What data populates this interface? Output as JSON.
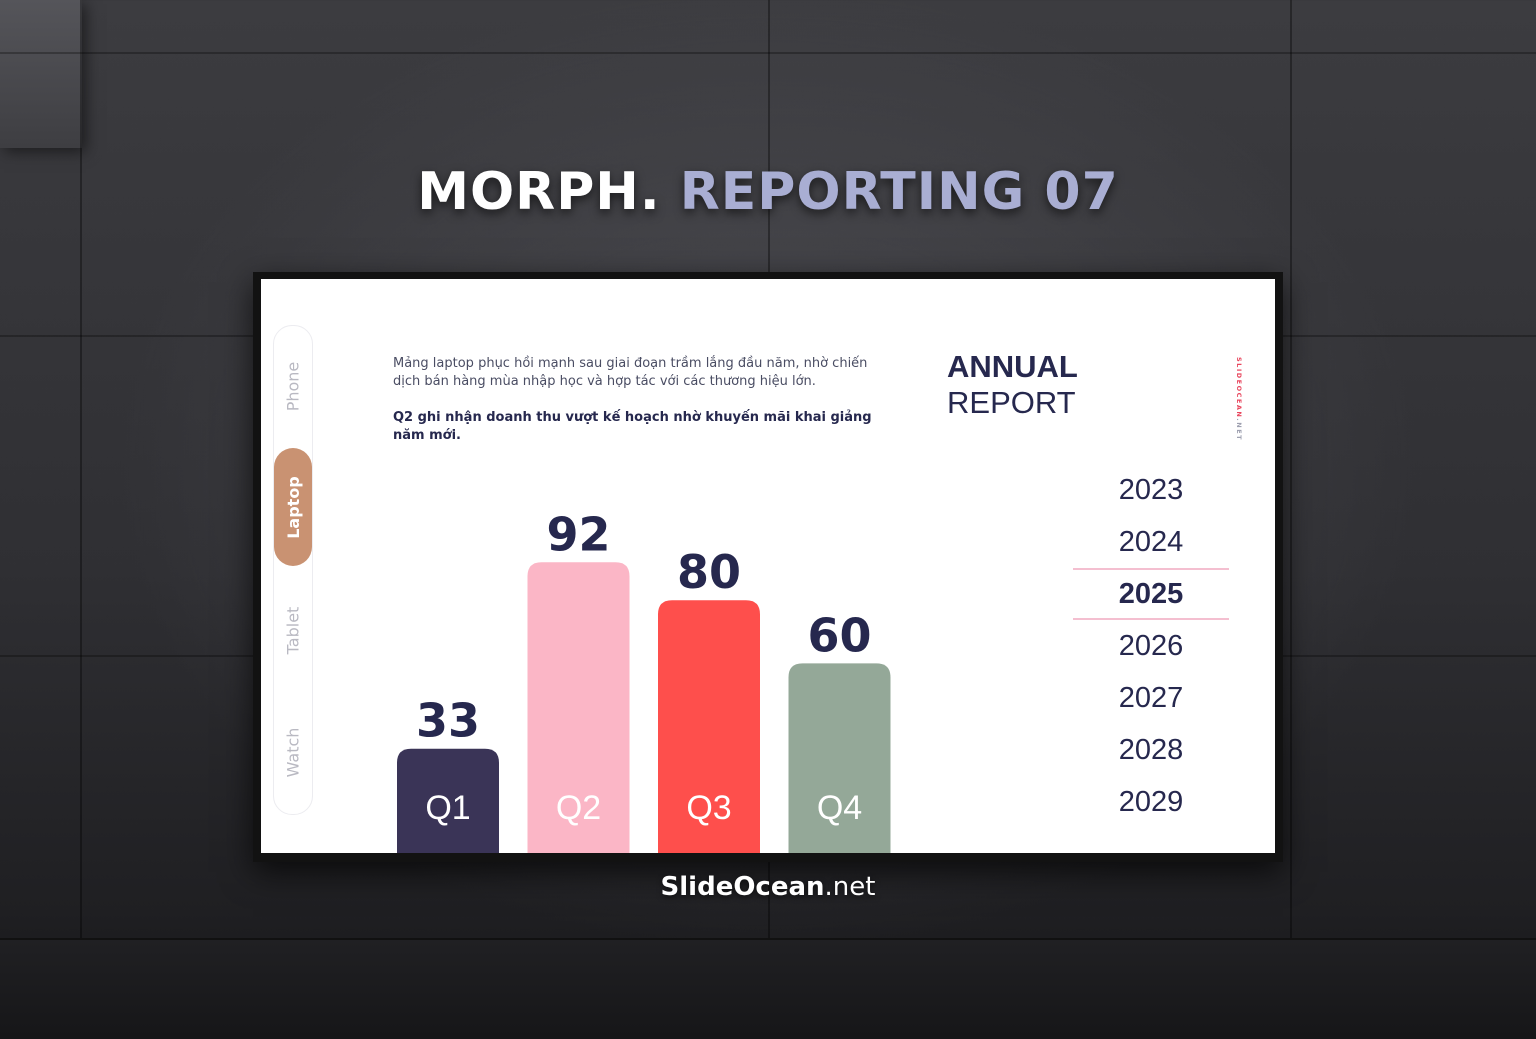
{
  "headline": {
    "white": "MORPH.",
    "accent": "REPORTING 07"
  },
  "footer": {
    "brand_bold": "SlideOcean",
    "brand_suffix": ".net"
  },
  "slide": {
    "tabs": [
      {
        "label": "Phone",
        "active": false
      },
      {
        "label": "Laptop",
        "active": true
      },
      {
        "label": "Tablet",
        "active": false
      },
      {
        "label": "Watch",
        "active": false
      }
    ],
    "description": "Mảng laptop phục hồi mạnh sau giai đoạn trầm lắng đầu năm, nhờ chiến dịch bán hàng mùa nhập học và hợp tác với các thương hiệu lớn.",
    "highlight": "Q2 ghi nhận doanh thu vượt kế hoạch nhờ khuyến mãi khai giảng năm mới.",
    "title_bold": "ANNUAL",
    "title_light": "REPORT",
    "side_tag_red": "SLIDEOCEAN",
    "side_tag_gray": ".NET",
    "years": [
      "2023",
      "2024",
      "2025",
      "2026",
      "2027",
      "2028",
      "2029"
    ],
    "active_year": "2025"
  },
  "chart_data": {
    "type": "bar",
    "categories": [
      "Q1",
      "Q2",
      "Q3",
      "Q4"
    ],
    "values": [
      33,
      92,
      80,
      60
    ],
    "colors": [
      "#3a3457",
      "#fbb6c6",
      "#fe4f4c",
      "#94a898"
    ],
    "value_label_color": "#26284e",
    "title": "",
    "xlabel": "",
    "ylabel": "",
    "ylim": [
      0,
      100
    ],
    "grid": false,
    "legend": "none"
  }
}
